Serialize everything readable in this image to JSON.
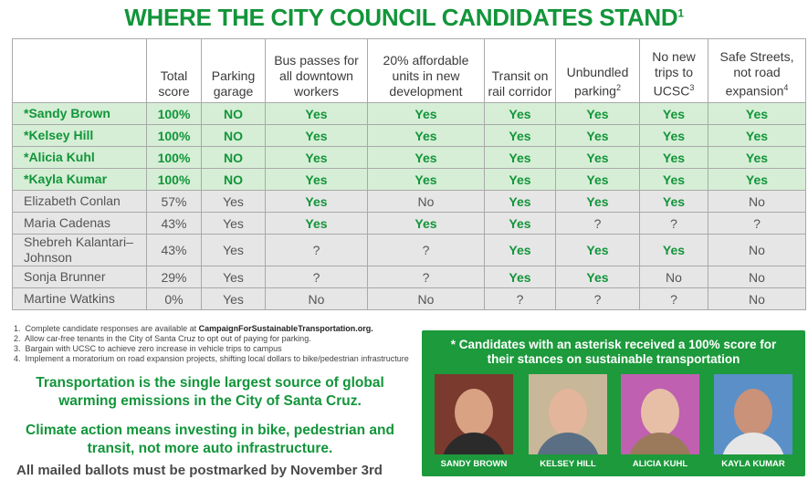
{
  "title": {
    "text": "WHERE THE CITY COUNCIL CANDIDATES STAND",
    "note": "1"
  },
  "table": {
    "header": [
      {
        "text": "Total score"
      },
      {
        "text": "Parking garage"
      },
      {
        "text": "Bus passes for all downtown workers"
      },
      {
        "text": "20% affordable units in new development"
      },
      {
        "text": "Transit on rail corridor"
      },
      {
        "text": "Unbundled parking",
        "note": "2"
      },
      {
        "text": "No new trips to UCSC",
        "note": "3"
      },
      {
        "text": "Safe Streets, not road expansion",
        "note": "4"
      }
    ],
    "rows": [
      [
        "*Sandy Brown",
        "100%",
        "NO",
        "Yes",
        "Yes",
        "Yes",
        "Yes",
        "Yes",
        "Yes"
      ],
      [
        "*Kelsey Hill",
        "100%",
        "NO",
        "Yes",
        "Yes",
        "Yes",
        "Yes",
        "Yes",
        "Yes"
      ],
      [
        "*Alicia Kuhl",
        "100%",
        "NO",
        "Yes",
        "Yes",
        "Yes",
        "Yes",
        "Yes",
        "Yes"
      ],
      [
        "*Kayla Kumar",
        "100%",
        "NO",
        "Yes",
        "Yes",
        "Yes",
        "Yes",
        "Yes",
        "Yes"
      ],
      [
        "Elizabeth Conlan",
        "57%",
        "Yes",
        "Yes",
        "No",
        "Yes",
        "Yes",
        "Yes",
        "No"
      ],
      [
        "Maria Cadenas",
        "43%",
        "Yes",
        "Yes",
        "Yes",
        "Yes",
        "?",
        "?",
        "?"
      ],
      [
        "Shebreh Kalantari–Johnson",
        "43%",
        "Yes",
        "?",
        "?",
        "Yes",
        "Yes",
        "Yes",
        "No"
      ],
      [
        "Sonja Brunner",
        "29%",
        "Yes",
        "?",
        "?",
        "Yes",
        "Yes",
        "No",
        "No"
      ],
      [
        "Martine Watkins",
        "0%",
        "Yes",
        "No",
        "No",
        "?",
        "?",
        "?",
        "No"
      ]
    ]
  },
  "footnotes": [
    {
      "number": "1.",
      "text": "Complete candidate responses are available at",
      "link": "CampaignForSustainableTransportation.org."
    },
    {
      "number": "2.",
      "text": "Allow car-free tenants in the City of Santa Cruz to opt out of paying for parking."
    },
    {
      "number": "3.",
      "text": "Bargain with UCSC to achieve zero increase in vehicle trips to campus"
    },
    {
      "number": "4.",
      "text": "Implement a moratorium on road expansion projects, shifting local dollars to bike/pedestrian infrastructure"
    }
  ],
  "statements": [
    "Transportation is the single largest source of global warming emissions in the City of Santa Cruz.",
    "Climate action means investing in bike, pedestrian and transit, not more auto infrastructure."
  ],
  "deadline": "All mailed ballots must be postmarked by November 3rd",
  "callout": {
    "text": "* Candidates with an asterisk received a 100% score for their stances on sustainable transportation",
    "photos": [
      {
        "caption": "SANDY BROWN"
      },
      {
        "caption": "KELSEY HILL"
      },
      {
        "caption": "ALICIA KUHL"
      },
      {
        "caption": "KAYLA KUMAR"
      }
    ]
  }
}
